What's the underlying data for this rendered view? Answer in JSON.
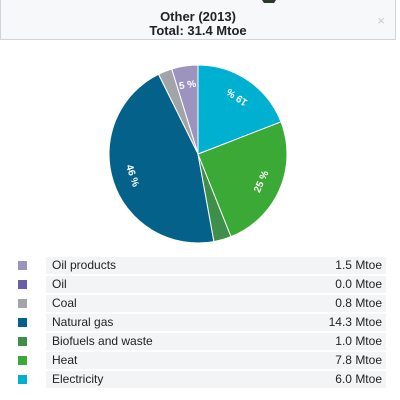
{
  "header": {
    "title": "Other (2013)",
    "subtitle": "Total: 31.4 Mtoe",
    "close_icon": "×"
  },
  "chart_data": {
    "type": "pie",
    "title": "Other (2013)",
    "subtitle": "Total: 31.4 Mtoe",
    "unit": "Mtoe",
    "slices": [
      {
        "name": "Oil products",
        "value": 1.5,
        "display": "1.5 Mtoe",
        "label": "5 %",
        "color": "#9c93bf"
      },
      {
        "name": "Oil",
        "value": 0.0,
        "display": "0.0 Mtoe",
        "label": "",
        "color": "#6a5fa6"
      },
      {
        "name": "Coal",
        "value": 0.8,
        "display": "0.8 Mtoe",
        "label": "",
        "color": "#a2a5a7"
      },
      {
        "name": "Natural gas",
        "value": 14.3,
        "display": "14.3 Mtoe",
        "label": "46 %",
        "color": "#04628a"
      },
      {
        "name": "Biofuels and waste",
        "value": 1.0,
        "display": "1.0 Mtoe",
        "label": "",
        "color": "#3e8f4a"
      },
      {
        "name": "Heat",
        "value": 7.8,
        "display": "7.8 Mtoe",
        "label": "25 %",
        "color": "#3aa935"
      },
      {
        "name": "Electricity",
        "value": 6.0,
        "display": "6.0 Mtoe",
        "label": "19 %",
        "color": "#00b0d0"
      }
    ]
  }
}
